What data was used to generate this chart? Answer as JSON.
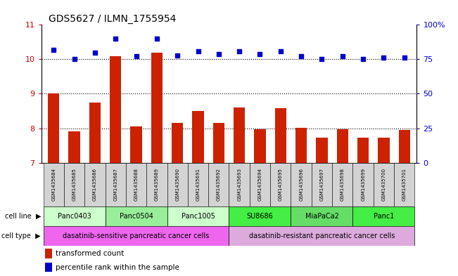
{
  "title": "GDS5627 / ILMN_1755954",
  "samples": [
    "GSM1435684",
    "GSM1435685",
    "GSM1435686",
    "GSM1435687",
    "GSM1435688",
    "GSM1435689",
    "GSM1435690",
    "GSM1435691",
    "GSM1435692",
    "GSM1435693",
    "GSM1435694",
    "GSM1435695",
    "GSM1435696",
    "GSM1435697",
    "GSM1435698",
    "GSM1435699",
    "GSM1435700",
    "GSM1435701"
  ],
  "transformed_count": [
    9.0,
    7.9,
    8.75,
    10.1,
    8.05,
    10.2,
    8.15,
    8.5,
    8.15,
    8.6,
    7.98,
    8.58,
    8.02,
    7.72,
    7.98,
    7.72,
    7.72,
    7.95
  ],
  "percentile_rank": [
    82,
    75,
    80,
    90,
    77,
    90,
    78,
    81,
    79,
    81,
    79,
    81,
    77,
    75,
    77,
    75,
    76,
    76
  ],
  "ylim_left": [
    7,
    11
  ],
  "ylim_right": [
    0,
    100
  ],
  "yticks_left": [
    7,
    8,
    9,
    10,
    11
  ],
  "yticks_right": [
    0,
    25,
    50,
    75,
    100
  ],
  "ytick_labels_right": [
    "0",
    "25",
    "50",
    "75",
    "100%"
  ],
  "bar_color": "#cc2200",
  "dot_color": "#0000cc",
  "cell_lines": [
    {
      "label": "Panc0403",
      "start": 0,
      "end": 2,
      "color": "#ccffcc"
    },
    {
      "label": "Panc0504",
      "start": 3,
      "end": 5,
      "color": "#99ee99"
    },
    {
      "label": "Panc1005",
      "start": 6,
      "end": 8,
      "color": "#ccffcc"
    },
    {
      "label": "SU8686",
      "start": 9,
      "end": 11,
      "color": "#44ee44"
    },
    {
      "label": "MiaPaCa2",
      "start": 12,
      "end": 14,
      "color": "#66dd66"
    },
    {
      "label": "Panc1",
      "start": 15,
      "end": 17,
      "color": "#44ee44"
    }
  ],
  "cell_types": [
    {
      "label": "dasatinib-sensitive pancreatic cancer cells",
      "start": 0,
      "end": 8,
      "color": "#ee66ee"
    },
    {
      "label": "dasatinib-resistant pancreatic cancer cells",
      "start": 9,
      "end": 17,
      "color": "#ddaadd"
    }
  ],
  "legend_bar_label": "transformed count",
  "legend_dot_label": "percentile rank within the sample",
  "bar_tick_color": "#cc0000",
  "right_tick_color": "#0000cc"
}
